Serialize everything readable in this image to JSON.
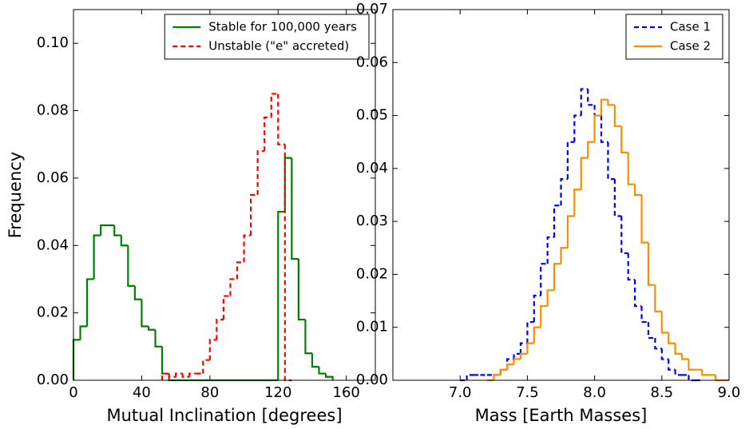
{
  "chart_data": [
    {
      "type": "histogram",
      "xlabel": "Mutual Inclination [degrees]",
      "ylabel": "Frequency",
      "xlim": [
        0,
        177
      ],
      "xticks": [
        0,
        40,
        80,
        120,
        160
      ],
      "ylim": [
        0,
        0.11
      ],
      "yticks": [
        {
          "value": 0,
          "label": "0.00"
        },
        {
          "value": 0.02,
          "label": "0.02"
        },
        {
          "value": 0.04,
          "label": "0.04"
        },
        {
          "value": 0.06,
          "label": "0.06"
        },
        {
          "value": 0.08,
          "label": "0.08"
        },
        {
          "value": 0.1,
          "label": "0.10"
        }
      ],
      "legend": "upper right",
      "series": [
        {
          "name": "Stable for 100,000 years",
          "color": "#008000",
          "dash": false,
          "bins": [
            0,
            4,
            8,
            12,
            16,
            20,
            24,
            28,
            32,
            36,
            40,
            44,
            48,
            52,
            56,
            60,
            64,
            68,
            72,
            76,
            80,
            84,
            88,
            92,
            96,
            100,
            104,
            108,
            112,
            116,
            120,
            124,
            128,
            132,
            136,
            140,
            144,
            148,
            152
          ],
          "values": [
            0.012,
            0.016,
            0.03,
            0.043,
            0.046,
            0.046,
            0.043,
            0.04,
            0.028,
            0.024,
            0.016,
            0.015,
            0.01,
            0.002,
            0,
            0,
            0,
            0,
            0,
            0,
            0,
            0,
            0,
            0,
            0,
            0,
            0,
            0,
            0,
            0,
            0.05,
            0.066,
            0.036,
            0.018,
            0.008,
            0.004,
            0.002,
            0.001
          ]
        },
        {
          "name": "Unstable (\"e\" accreted)",
          "color": "#ff0000",
          "dash": true,
          "bins": [
            52,
            56,
            60,
            64,
            68,
            72,
            76,
            80,
            84,
            88,
            92,
            96,
            100,
            104,
            108,
            112,
            116,
            120,
            124,
            128
          ],
          "values": [
            0.002,
            0.001,
            0.002,
            0.001,
            0.002,
            0.002,
            0.006,
            0.012,
            0.018,
            0.025,
            0.03,
            0.035,
            0.043,
            0.055,
            0.068,
            0.078,
            0.085,
            0.07,
            0
          ]
        }
      ]
    },
    {
      "type": "histogram",
      "xlabel": "Mass [Earth Masses]",
      "xlim": [
        6.5,
        9.0
      ],
      "xticks": [
        {
          "value": 7,
          "label": "7.0"
        },
        7.5,
        {
          "value": 8,
          "label": "8.0"
        },
        8.5,
        {
          "value": 9,
          "label": "9.0"
        }
      ],
      "ylim": [
        0,
        0.07
      ],
      "yticks": [
        {
          "value": 0,
          "label": "0.00"
        },
        {
          "value": 0.01,
          "label": "0.01"
        },
        {
          "value": 0.02,
          "label": "0.02"
        },
        {
          "value": 0.03,
          "label": "0.03"
        },
        {
          "value": 0.04,
          "label": "0.04"
        },
        {
          "value": 0.05,
          "label": "0.05"
        },
        {
          "value": 0.06,
          "label": "0.06"
        },
        {
          "value": 0.07,
          "label": "0.07"
        }
      ],
      "legend": "upper right",
      "series": [
        {
          "name": "Case 1",
          "color": "#0000ff",
          "dash": true,
          "bins": [
            7.0,
            7.05,
            7.1,
            7.15,
            7.2,
            7.25,
            7.3,
            7.35,
            7.4,
            7.45,
            7.5,
            7.55,
            7.6,
            7.65,
            7.7,
            7.75,
            7.8,
            7.85,
            7.9,
            7.95,
            8.0,
            8.05,
            8.1,
            8.15,
            8.2,
            8.25,
            8.3,
            8.35,
            8.4,
            8.45,
            8.5,
            8.55,
            8.6,
            8.65,
            8.7,
            8.75,
            8.8
          ],
          "values": [
            0,
            0.001,
            0.001,
            0.001,
            0.001,
            0.001,
            0.002,
            0.004,
            0.005,
            0.007,
            0.011,
            0.016,
            0.022,
            0.027,
            0.033,
            0.038,
            0.045,
            0.05,
            0.055,
            0.052,
            0.05,
            0.045,
            0.038,
            0.031,
            0.024,
            0.019,
            0.014,
            0.011,
            0.008,
            0.006,
            0.004,
            0.002,
            0.001,
            0.001,
            0,
            0
          ]
        },
        {
          "name": "Case 2",
          "color": "#ff8c00",
          "dash": false,
          "bins": [
            7.2,
            7.25,
            7.3,
            7.35,
            7.4,
            7.45,
            7.5,
            7.55,
            7.6,
            7.65,
            7.7,
            7.75,
            7.8,
            7.85,
            7.9,
            7.95,
            8.0,
            8.05,
            8.1,
            8.15,
            8.2,
            8.25,
            8.3,
            8.35,
            8.4,
            8.45,
            8.5,
            8.55,
            8.6,
            8.65,
            8.7,
            8.75,
            8.8,
            8.85,
            8.9,
            8.95,
            9.0
          ],
          "values": [
            0,
            0.001,
            0.002,
            0.003,
            0.004,
            0.005,
            0.007,
            0.01,
            0.014,
            0.017,
            0.022,
            0.025,
            0.031,
            0.036,
            0.042,
            0.045,
            0.05,
            0.053,
            0.052,
            0.048,
            0.043,
            0.037,
            0.035,
            0.026,
            0.018,
            0.013,
            0.009,
            0.007,
            0.005,
            0.004,
            0.002,
            0.002,
            0.001,
            0.001,
            0,
            0
          ]
        }
      ]
    }
  ]
}
